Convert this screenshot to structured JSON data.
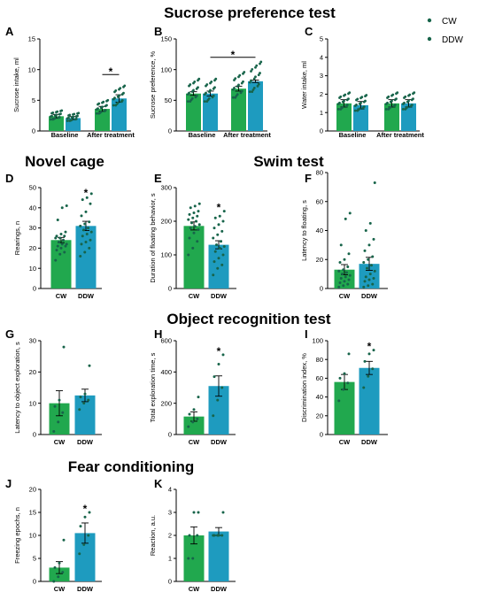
{
  "colors": {
    "CW": "#21a84e",
    "DDW": "#1e9bbf",
    "dot": "#17644a",
    "axis": "#000000"
  },
  "sections": [
    {
      "id": "sucrose",
      "title": "Sucrose preference test"
    },
    {
      "id": "novel",
      "title": "Novel cage"
    },
    {
      "id": "swim",
      "title": "Swim test"
    },
    {
      "id": "object",
      "title": "Object recognition test"
    },
    {
      "id": "fear",
      "title": "Fear conditioning"
    }
  ],
  "legend": [
    {
      "label": "CW",
      "color": "#21a84e"
    },
    {
      "label": "DDW",
      "color": "#1e9bbf"
    }
  ],
  "chart_data": [
    {
      "id": "A",
      "type": "bar",
      "ylabel": "Sucrose intake, ml",
      "ylim": [
        0,
        15
      ],
      "yticks": [
        0,
        5,
        10,
        15
      ],
      "groups": [
        "Baseline",
        "After treatment"
      ],
      "series": [
        {
          "name": "CW",
          "values": [
            2.4,
            3.6
          ],
          "errors": [
            0.3,
            0.4
          ]
        },
        {
          "name": "DDW",
          "values": [
            2.1,
            5.3
          ],
          "errors": [
            0.25,
            0.6
          ]
        }
      ],
      "significance": [
        {
          "between": "After treatment: CW vs DDW",
          "label": "*"
        }
      ]
    },
    {
      "id": "B",
      "type": "bar",
      "ylabel": "Sucrose preference, %",
      "ylim": [
        0,
        150
      ],
      "yticks": [
        0,
        50,
        100,
        150
      ],
      "groups": [
        "Baseline",
        "After treatment"
      ],
      "series": [
        {
          "name": "CW",
          "values": [
            61,
            69
          ],
          "errors": [
            3,
            4
          ]
        },
        {
          "name": "DDW",
          "values": [
            61,
            81
          ],
          "errors": [
            4,
            2
          ]
        }
      ],
      "significance": [
        {
          "between": "Baseline DDW vs After treatment DDW",
          "label": "*"
        }
      ]
    },
    {
      "id": "C",
      "type": "bar",
      "ylabel": "Water intake, ml",
      "ylim": [
        0,
        5
      ],
      "yticks": [
        0,
        1,
        2,
        3,
        4,
        5
      ],
      "groups": [
        "Baseline",
        "After treatment"
      ],
      "series": [
        {
          "name": "CW",
          "values": [
            1.5,
            1.5
          ],
          "errors": [
            0.2,
            0.2
          ]
        },
        {
          "name": "DDW",
          "values": [
            1.4,
            1.5
          ],
          "errors": [
            0.2,
            0.2
          ]
        }
      ],
      "significance": []
    },
    {
      "id": "D",
      "type": "bar",
      "ylabel": "Rearings, n",
      "ylim": [
        0,
        50
      ],
      "yticks": [
        0,
        10,
        20,
        30,
        40,
        50
      ],
      "categories": [
        "CW",
        "DDW"
      ],
      "values": [
        24,
        31
      ],
      "errors": [
        1.3,
        2.3
      ],
      "points": [
        [
          14,
          17,
          18,
          19,
          20,
          21,
          21,
          22,
          22,
          23,
          24,
          25,
          25,
          26,
          26,
          27,
          28,
          34,
          40,
          41
        ],
        [
          16,
          18,
          20,
          22,
          23,
          24,
          26,
          27,
          28,
          29,
          30,
          31,
          32,
          33,
          36,
          38,
          42,
          44,
          45,
          47
        ]
      ],
      "significance": [
        {
          "between": "CW vs DDW",
          "label": "*"
        }
      ]
    },
    {
      "id": "E",
      "type": "bar",
      "ylabel": "Duration of floating behavior, s",
      "ylim": [
        0,
        300
      ],
      "yticks": [
        0,
        100,
        200,
        300
      ],
      "categories": [
        "CW",
        "DDW"
      ],
      "values": [
        186,
        130
      ],
      "errors": [
        12,
        12
      ],
      "points": [
        [
          100,
          120,
          140,
          150,
          165,
          175,
          180,
          185,
          190,
          195,
          200,
          205,
          210,
          215,
          220,
          225,
          230,
          240,
          245,
          252
        ],
        [
          40,
          60,
          70,
          80,
          90,
          100,
          110,
          120,
          125,
          130,
          140,
          150,
          160,
          170,
          180,
          190,
          200,
          210,
          215,
          230
        ]
      ],
      "significance": [
        {
          "between": "CW vs DDW",
          "label": "*"
        }
      ]
    },
    {
      "id": "F",
      "type": "bar",
      "ylabel": "Latency to floating, s",
      "ylim": [
        0,
        80
      ],
      "yticks": [
        0,
        20,
        40,
        60,
        80
      ],
      "categories": [
        "CW",
        "DDW"
      ],
      "values": [
        13,
        17
      ],
      "errors": [
        3.5,
        4.5
      ],
      "points": [
        [
          1,
          2,
          3,
          4,
          5,
          6,
          7,
          8,
          9,
          10,
          11,
          12,
          13,
          15,
          18,
          20,
          24,
          30,
          48,
          52
        ],
        [
          1,
          2,
          3,
          5,
          6,
          7,
          8,
          10,
          12,
          14,
          16,
          18,
          20,
          22,
          26,
          30,
          34,
          40,
          45,
          73
        ]
      ],
      "significance": []
    },
    {
      "id": "G",
      "type": "bar",
      "ylabel": "Latency to object exploration, s",
      "ylim": [
        0,
        30
      ],
      "yticks": [
        0,
        10,
        20,
        30
      ],
      "categories": [
        "CW",
        "DDW"
      ],
      "values": [
        10,
        12.5
      ],
      "errors": [
        4,
        2
      ],
      "points": [
        [
          1,
          4,
          7,
          9,
          11,
          28
        ],
        [
          8,
          10,
          11,
          12,
          13,
          22
        ]
      ],
      "significance": []
    },
    {
      "id": "H",
      "type": "bar",
      "ylabel": "Total exploration time, s",
      "ylim": [
        0,
        600
      ],
      "yticks": [
        0,
        200,
        400,
        600
      ],
      "categories": [
        "CW",
        "DDW"
      ],
      "values": [
        115,
        310
      ],
      "errors": [
        30,
        65
      ],
      "points": [
        [
          50,
          80,
          100,
          130,
          160,
          240
        ],
        [
          120,
          220,
          300,
          370,
          450,
          510
        ]
      ],
      "significance": [
        {
          "between": "CW vs DDW",
          "label": "*"
        }
      ]
    },
    {
      "id": "I",
      "type": "bar",
      "ylabel": "Discrimination index, %",
      "ylim": [
        0,
        100
      ],
      "yticks": [
        0,
        20,
        40,
        60,
        80,
        100
      ],
      "categories": [
        "CW",
        "DDW"
      ],
      "values": [
        56,
        71
      ],
      "errors": [
        8,
        7
      ],
      "points": [
        [
          36,
          48,
          55,
          60,
          65,
          86
        ],
        [
          50,
          62,
          70,
          78,
          86,
          90
        ]
      ],
      "significance": [
        {
          "between": "CW vs DDW",
          "label": "*"
        }
      ]
    },
    {
      "id": "J",
      "type": "bar",
      "ylabel": "Freezing epochs, n",
      "ylim": [
        0,
        20
      ],
      "yticks": [
        0,
        5,
        10,
        15,
        20
      ],
      "categories": [
        "CW",
        "DDW"
      ],
      "values": [
        3,
        10.5
      ],
      "errors": [
        1.3,
        2.2
      ],
      "points": [
        [
          0,
          1,
          2,
          3,
          4,
          9
        ],
        [
          6,
          8,
          10,
          12,
          14,
          15
        ]
      ],
      "significance": [
        {
          "between": "CW vs DDW",
          "label": "*"
        }
      ]
    },
    {
      "id": "K",
      "type": "bar",
      "ylabel": "Reaction, a.u.",
      "ylim": [
        0,
        4
      ],
      "yticks": [
        0,
        1,
        2,
        3,
        4
      ],
      "categories": [
        "CW",
        "DDW"
      ],
      "values": [
        2,
        2.17
      ],
      "errors": [
        0.37,
        0.17
      ],
      "points": [
        [
          1,
          1,
          2,
          2,
          3,
          3
        ],
        [
          2,
          2,
          2,
          2,
          2,
          3
        ]
      ],
      "significance": []
    }
  ]
}
